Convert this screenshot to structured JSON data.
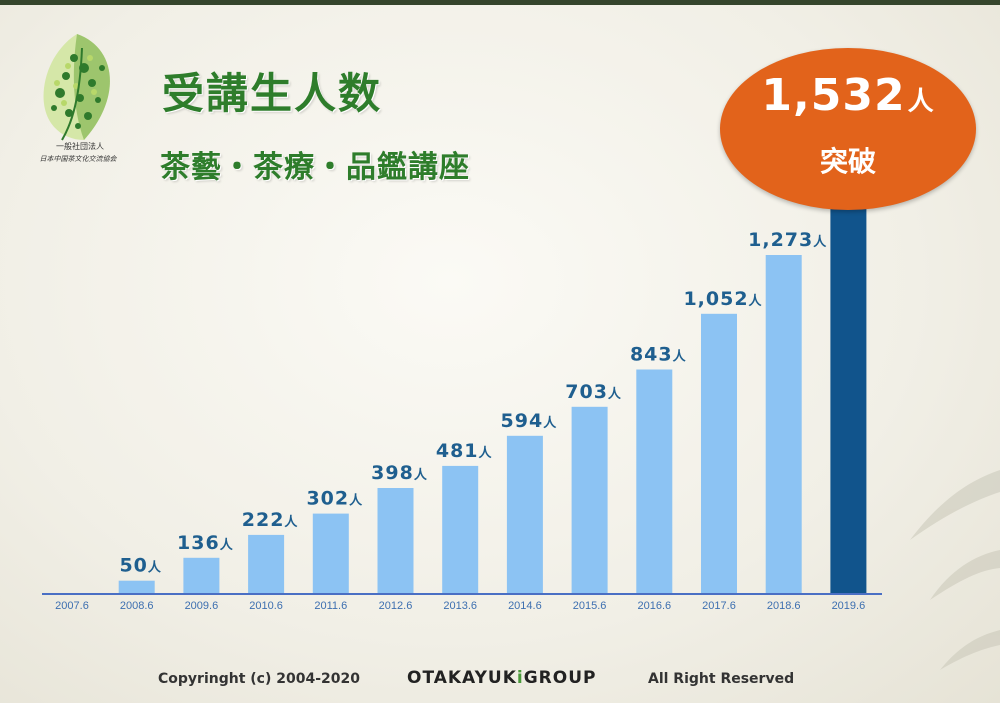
{
  "title": "受講生人数",
  "subtitle": "茶藝・茶療・品鑑講座",
  "logo": {
    "line1": "一般社団法人",
    "line2": "日本中国茶文化交流協会"
  },
  "highlight": {
    "value": "1,532",
    "unit": "人",
    "caption": "突破",
    "color": "#e2631b"
  },
  "colors": {
    "bar": "#8cc3f3",
    "bar_highlight": "#11548c",
    "axis": "#4a6fc4",
    "title": "#2e7d2b"
  },
  "chart_data": {
    "type": "bar",
    "title": "受講生人数",
    "categories": [
      "2007.6",
      "2008.6",
      "2009.6",
      "2010.6",
      "2011.6",
      "2012.6",
      "2013.6",
      "2014.6",
      "2015.6",
      "2016.6",
      "2017.6",
      "2018.6",
      "2019.6"
    ],
    "values": [
      0,
      50,
      136,
      222,
      302,
      398,
      481,
      594,
      703,
      843,
      1052,
      1273,
      1532
    ],
    "value_labels": [
      "",
      "50",
      "136",
      "222",
      "302",
      "398",
      "481",
      "594",
      "703",
      "843",
      "1,052",
      "1,273",
      ""
    ],
    "unit": "人",
    "ylim": [
      0,
      1532
    ],
    "grid": false,
    "legend": "none"
  },
  "footer": {
    "copyright": "Copyringht (c) 2004-2020",
    "brand_pre": "OTAKAYUK",
    "brand_i": "i",
    "brand_post": "GROUP",
    "rights": "All Right Reserved"
  }
}
